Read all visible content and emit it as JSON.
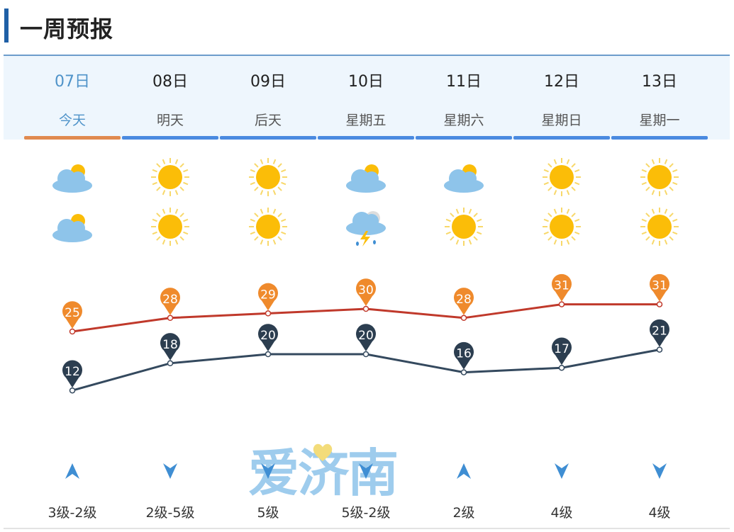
{
  "title": "一周预报",
  "days": [
    {
      "date": "07日",
      "label": "今天",
      "active": true,
      "day_icon": "partly-cloudy",
      "night_icon": "partly-cloudy",
      "wind_dir": "up",
      "wind": "3级-2级"
    },
    {
      "date": "08日",
      "label": "明天",
      "active": false,
      "day_icon": "sunny",
      "night_icon": "sunny",
      "wind_dir": "down",
      "wind": "2级-5级"
    },
    {
      "date": "09日",
      "label": "后天",
      "active": false,
      "day_icon": "sunny",
      "night_icon": "sunny",
      "wind_dir": "down",
      "wind": "5级"
    },
    {
      "date": "10日",
      "label": "星期五",
      "active": false,
      "day_icon": "partly-cloudy",
      "night_icon": "thunder-shower",
      "wind_dir": "down",
      "wind": "5级-2级"
    },
    {
      "date": "11日",
      "label": "星期六",
      "active": false,
      "day_icon": "partly-cloudy",
      "night_icon": "sunny",
      "wind_dir": "up",
      "wind": "2级"
    },
    {
      "date": "12日",
      "label": "星期日",
      "active": false,
      "day_icon": "sunny",
      "night_icon": "sunny",
      "wind_dir": "down",
      "wind": "4级"
    },
    {
      "date": "13日",
      "label": "星期一",
      "active": false,
      "day_icon": "sunny",
      "night_icon": "sunny",
      "wind_dir": "down",
      "wind": "4级"
    }
  ],
  "chart_data": {
    "type": "line",
    "categories": [
      "07日",
      "08日",
      "09日",
      "10日",
      "11日",
      "12日",
      "13日"
    ],
    "series": [
      {
        "values": [
          25,
          28,
          29,
          30,
          28,
          31,
          31
        ],
        "color": "#c0392b",
        "marker_color": "#ef8a2c"
      },
      {
        "values": [
          12,
          18,
          20,
          20,
          16,
          17,
          21
        ],
        "color": "#34495e",
        "marker_color": "#2c3e50"
      }
    ]
  },
  "watermark": "爱济南",
  "colors": {
    "accent": "#1f5fa6",
    "active_tab": "#e08a50",
    "tab_bar": "#4a8ae0"
  }
}
